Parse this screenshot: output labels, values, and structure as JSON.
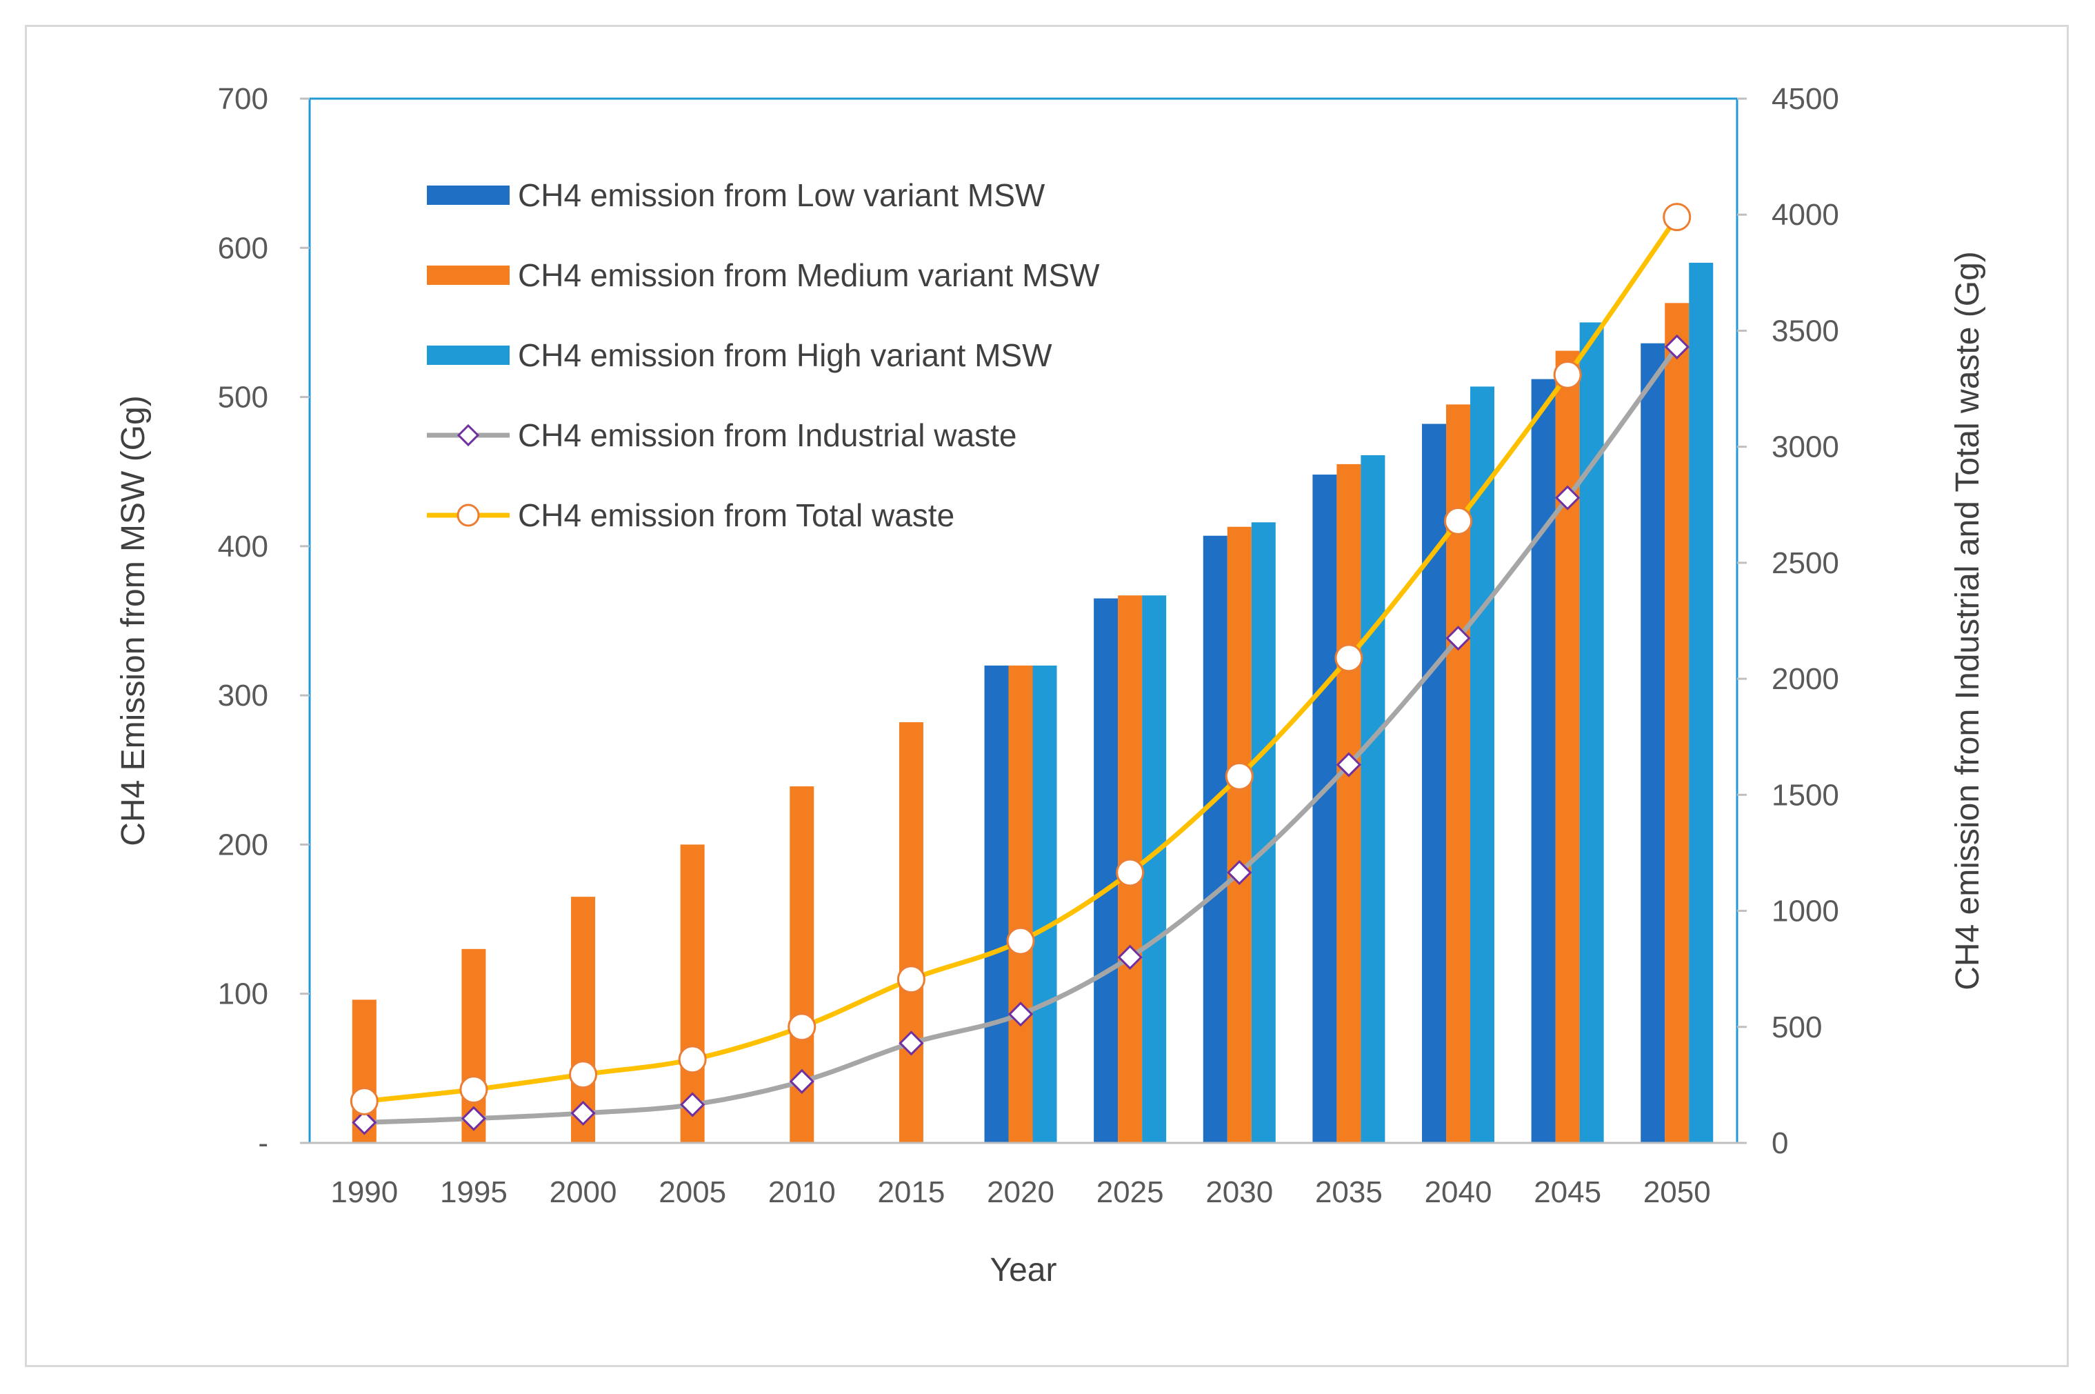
{
  "chart_data": {
    "type": "bar",
    "categories": [
      "1990",
      "1995",
      "2000",
      "2005",
      "2010",
      "2015",
      "2020",
      "2025",
      "2030",
      "2035",
      "2040",
      "2045",
      "2050"
    ],
    "xlabel": "Year",
    "ylabel": "CH4 Emission from MSW  (Gg)",
    "y2label": "CH4 emission from Industrial and Total waste (Gg)",
    "ylim": [
      0,
      700
    ],
    "y2lim": [
      0,
      4500
    ],
    "yticks": [
      "-",
      "100",
      "200",
      "300",
      "400",
      "500",
      "600",
      "700"
    ],
    "y2ticks": [
      "0",
      "500",
      "1000",
      "1500",
      "2000",
      "2500",
      "3000",
      "3500",
      "4000",
      "4500"
    ],
    "bar_series": [
      {
        "name": "CH4 emission from Low variant MSW",
        "color": "#1f6fc5",
        "values": [
          null,
          null,
          null,
          null,
          null,
          null,
          320,
          365,
          407,
          448,
          482,
          512,
          536
        ]
      },
      {
        "name": "CH4 emission from Medium variant MSW",
        "color": "#f47d20",
        "values": [
          96,
          130,
          165,
          200,
          239,
          282,
          320,
          367,
          413,
          455,
          495,
          531,
          563
        ]
      },
      {
        "name": "CH4 emission from High variant MSW",
        "color": "#1f9ad6",
        "values": [
          null,
          null,
          null,
          null,
          null,
          null,
          320,
          367,
          416,
          461,
          507,
          550,
          590
        ]
      }
    ],
    "line_series": [
      {
        "name": "CH4 emission from Industrial waste",
        "color": "#a6a6a6",
        "marker": "diamond",
        "marker_edge": "#7030a0",
        "values": [
          88,
          105,
          128,
          165,
          265,
          430,
          555,
          800,
          1165,
          1630,
          2175,
          2780,
          3430
        ]
      },
      {
        "name": "CH4 emission from Total waste",
        "color": "#ffc000",
        "marker": "circle",
        "marker_edge": "#ed7d31",
        "values": [
          180,
          230,
          295,
          360,
          500,
          705,
          870,
          1165,
          1580,
          2090,
          2680,
          3310,
          3990
        ]
      }
    ]
  }
}
